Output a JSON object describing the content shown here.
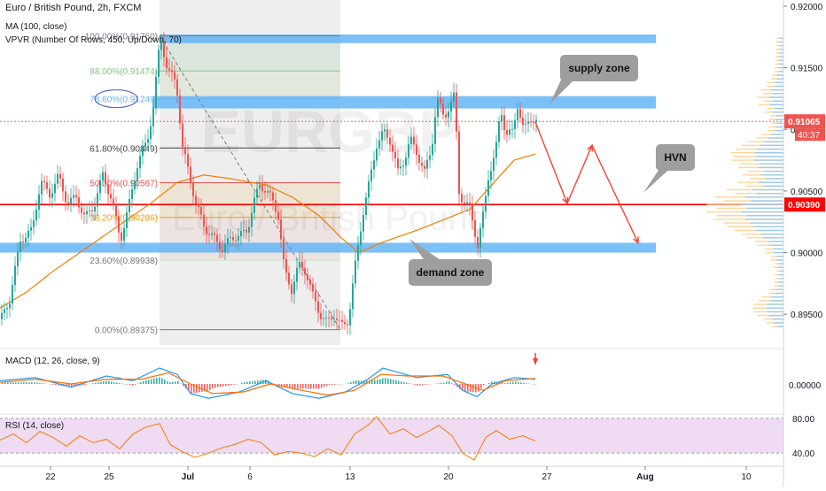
{
  "header": {
    "title": "Euro / British Pound, 2h, FXCM",
    "ma": "MA (100, close)",
    "vpvr": "VPVR (Number Of Rows, 450, Up/Down, 70)"
  },
  "watermark": {
    "symbol": "EURGBP",
    "name": "Euro / British Pound"
  },
  "colors": {
    "up": "#26a69a",
    "down": "#ef5350",
    "ma": "#f57c00",
    "zone": "#64b5f6",
    "hvn_line": "#ff0000",
    "macd": "#2196f3",
    "signal": "#ff6d00",
    "rsi": "#f57c00",
    "rsi_band": "#e1bee7",
    "callout": "#9e9e9e"
  },
  "price_axis": {
    "ticks": [
      "0.92000",
      "0.91500",
      "0.91000",
      "0.90500",
      "0.90000",
      "0.89500"
    ],
    "current_price": "0.91065",
    "countdown": "40:37",
    "hvn_level": "0.90390"
  },
  "time_axis": {
    "labels": [
      "22",
      "25",
      "Jul",
      "6",
      "13",
      "20",
      "27",
      "Aug",
      "10"
    ]
  },
  "fib": [
    {
      "label": "100.00%(0.91760)",
      "level": 0.9176
    },
    {
      "label": "88.00%(0.91474)",
      "level": 0.91474
    },
    {
      "label": "78.60%(0.91249)",
      "level": 0.91249
    },
    {
      "label": "61.80%(0.90849)",
      "level": 0.90849
    },
    {
      "label": "50.00%(0.90567)",
      "level": 0.90567
    },
    {
      "label": "38.20%(0.90286)",
      "level": 0.90286
    },
    {
      "label": "23.60%(0.89938)",
      "level": 0.89938
    },
    {
      "label": "0.00%(0.89375)",
      "level": 0.89375
    }
  ],
  "zones": {
    "top_zone": {
      "from": 0.917,
      "to": 0.9177
    },
    "supply": {
      "from": 0.9117,
      "to": 0.9127
    },
    "demand": {
      "from": 0.9,
      "to": 0.9008
    }
  },
  "callouts": {
    "supply": "supply zone",
    "hvn": "HVN",
    "demand": "demand zone"
  },
  "macd_panel": {
    "label": "MACD (12, 26, close, 9)",
    "tick": "0.00000"
  },
  "rsi_panel": {
    "label": "RSI (14, close)",
    "ticks": [
      "80.00",
      "40.00"
    ]
  },
  "chart_data": {
    "type": "candlestick",
    "title": "Euro / British Pound, 2h, FXCM",
    "ylim": [
      0.8925,
      0.9205
    ],
    "close_path": [
      [
        0,
        0.8946
      ],
      [
        10,
        0.8962
      ],
      [
        22,
        0.901
      ],
      [
        35,
        0.9018
      ],
      [
        45,
        0.9058
      ],
      [
        55,
        0.9047
      ],
      [
        65,
        0.9062
      ],
      [
        75,
        0.904
      ],
      [
        85,
        0.9045
      ],
      [
        95,
        0.9028
      ],
      [
        105,
        0.9038
      ],
      [
        115,
        0.9063
      ],
      [
        125,
        0.9043
      ],
      [
        135,
        0.901
      ],
      [
        145,
        0.904
      ],
      [
        155,
        0.9075
      ],
      [
        165,
        0.909
      ],
      [
        172,
        0.9118
      ],
      [
        180,
        0.9176
      ],
      [
        188,
        0.9148
      ],
      [
        198,
        0.9138
      ],
      [
        205,
        0.9085
      ],
      [
        212,
        0.9065
      ],
      [
        220,
        0.904
      ],
      [
        230,
        0.902
      ],
      [
        240,
        0.9012
      ],
      [
        250,
        0.9003
      ],
      [
        260,
        0.9012
      ],
      [
        270,
        0.9014
      ],
      [
        278,
        0.9018
      ],
      [
        285,
        0.904
      ],
      [
        292,
        0.9055
      ],
      [
        300,
        0.905
      ],
      [
        306,
        0.9043
      ],
      [
        313,
        0.903
      ],
      [
        320,
        0.8985
      ],
      [
        328,
        0.897
      ],
      [
        336,
        0.899
      ],
      [
        344,
        0.8985
      ],
      [
        352,
        0.8965
      ],
      [
        360,
        0.895
      ],
      [
        368,
        0.8943
      ],
      [
        376,
        0.895
      ],
      [
        384,
        0.894
      ],
      [
        392,
        0.8945
      ],
      [
        400,
        0.899
      ],
      [
        408,
        0.903
      ],
      [
        416,
        0.9058
      ],
      [
        424,
        0.9088
      ],
      [
        432,
        0.9098
      ],
      [
        440,
        0.909
      ],
      [
        448,
        0.9065
      ],
      [
        455,
        0.9075
      ],
      [
        462,
        0.9092
      ],
      [
        470,
        0.908
      ],
      [
        478,
        0.9065
      ],
      [
        486,
        0.9085
      ],
      [
        492,
        0.9125
      ],
      [
        500,
        0.911
      ],
      [
        507,
        0.912
      ],
      [
        512,
        0.9128
      ],
      [
        517,
        0.905
      ],
      [
        522,
        0.904
      ],
      [
        530,
        0.9035
      ],
      [
        538,
        0.9005
      ],
      [
        544,
        0.903
      ],
      [
        550,
        0.9062
      ],
      [
        558,
        0.908
      ],
      [
        564,
        0.9118
      ],
      [
        570,
        0.9095
      ],
      [
        577,
        0.9098
      ],
      [
        583,
        0.912
      ],
      [
        590,
        0.9098
      ],
      [
        597,
        0.911
      ],
      [
        604,
        0.9106
      ]
    ],
    "ma_path": [
      [
        0,
        0.8955
      ],
      [
        30,
        0.8968
      ],
      [
        60,
        0.8985
      ],
      [
        100,
        0.9005
      ],
      [
        140,
        0.9025
      ],
      [
        170,
        0.904
      ],
      [
        200,
        0.9057
      ],
      [
        230,
        0.9063
      ],
      [
        260,
        0.906
      ],
      [
        300,
        0.9055
      ],
      [
        330,
        0.9045
      ],
      [
        360,
        0.903
      ],
      [
        385,
        0.9012
      ],
      [
        405,
        0.9
      ],
      [
        430,
        0.9008
      ],
      [
        470,
        0.9018
      ],
      [
        505,
        0.9028
      ],
      [
        530,
        0.9035
      ],
      [
        555,
        0.9055
      ],
      [
        580,
        0.9075
      ],
      [
        604,
        0.908
      ]
    ],
    "macd_path": [
      [
        0,
        0.2
      ],
      [
        40,
        0.4
      ],
      [
        80,
        -0.2
      ],
      [
        120,
        0.5
      ],
      [
        150,
        0.2
      ],
      [
        180,
        1.0
      ],
      [
        200,
        0.6
      ],
      [
        215,
        -0.6
      ],
      [
        235,
        -0.9
      ],
      [
        270,
        -0.5
      ],
      [
        300,
        0.2
      ],
      [
        330,
        -0.6
      ],
      [
        360,
        -0.9
      ],
      [
        390,
        -0.5
      ],
      [
        415,
        0.3
      ],
      [
        432,
        1.0
      ],
      [
        470,
        0.4
      ],
      [
        505,
        0.6
      ],
      [
        522,
        -0.4
      ],
      [
        538,
        -0.8
      ],
      [
        555,
        0.0
      ],
      [
        580,
        0.4
      ],
      [
        604,
        0.3
      ]
    ],
    "signal_path": [
      [
        0,
        0.1
      ],
      [
        40,
        0.3
      ],
      [
        80,
        0.0
      ],
      [
        120,
        0.3
      ],
      [
        160,
        0.3
      ],
      [
        190,
        0.7
      ],
      [
        215,
        0.0
      ],
      [
        240,
        -0.6
      ],
      [
        275,
        -0.5
      ],
      [
        305,
        0.0
      ],
      [
        340,
        -0.4
      ],
      [
        370,
        -0.7
      ],
      [
        400,
        -0.4
      ],
      [
        430,
        0.6
      ],
      [
        460,
        0.5
      ],
      [
        500,
        0.5
      ],
      [
        525,
        0.0
      ],
      [
        545,
        -0.4
      ],
      [
        570,
        0.2
      ],
      [
        604,
        0.35
      ]
    ],
    "rsi_path": [
      [
        0,
        55
      ],
      [
        15,
        62
      ],
      [
        30,
        52
      ],
      [
        45,
        65
      ],
      [
        60,
        58
      ],
      [
        75,
        48
      ],
      [
        90,
        60
      ],
      [
        105,
        52
      ],
      [
        120,
        56
      ],
      [
        135,
        45
      ],
      [
        150,
        62
      ],
      [
        165,
        70
      ],
      [
        180,
        74
      ],
      [
        192,
        50
      ],
      [
        205,
        42
      ],
      [
        220,
        35
      ],
      [
        235,
        40
      ],
      [
        250,
        46
      ],
      [
        265,
        50
      ],
      [
        280,
        56
      ],
      [
        295,
        52
      ],
      [
        310,
        38
      ],
      [
        325,
        42
      ],
      [
        340,
        40
      ],
      [
        355,
        36
      ],
      [
        370,
        45
      ],
      [
        385,
        38
      ],
      [
        400,
        62
      ],
      [
        415,
        72
      ],
      [
        425,
        82
      ],
      [
        440,
        62
      ],
      [
        455,
        68
      ],
      [
        470,
        58
      ],
      [
        485,
        66
      ],
      [
        495,
        72
      ],
      [
        510,
        60
      ],
      [
        522,
        40
      ],
      [
        535,
        32
      ],
      [
        548,
        58
      ],
      [
        560,
        66
      ],
      [
        575,
        56
      ],
      [
        590,
        60
      ],
      [
        604,
        54
      ]
    ],
    "forecast_path": [
      [
        604,
        0.9106
      ],
      [
        640,
        0.904
      ],
      [
        668,
        0.9087
      ],
      [
        720,
        0.9008
      ]
    ]
  }
}
